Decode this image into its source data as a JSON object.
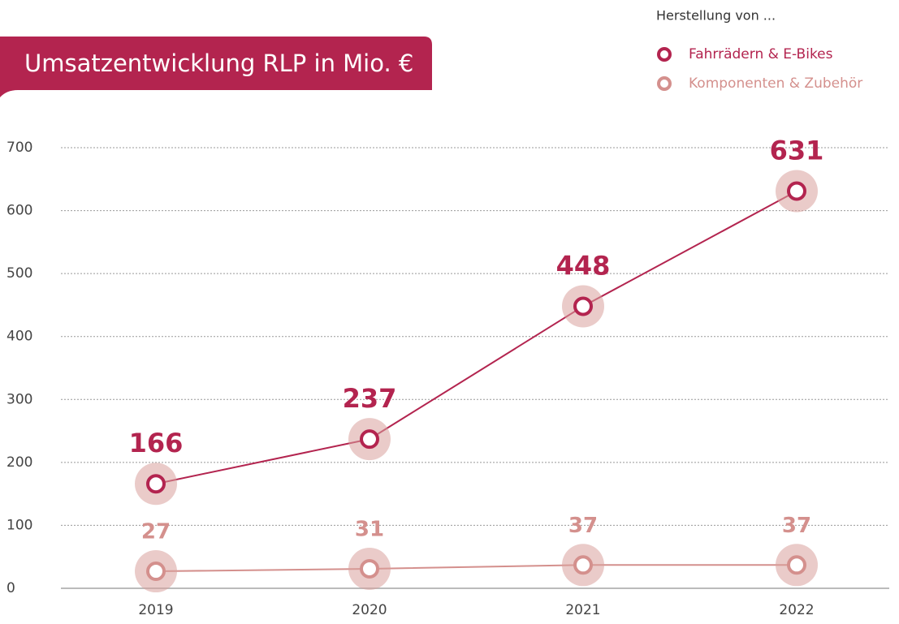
{
  "chart_data": {
    "type": "line",
    "title": "Umsatzentwicklung RLP in Mio. €",
    "legend_title": "Herstellung von ...",
    "categories": [
      "2019",
      "2020",
      "2021",
      "2022"
    ],
    "series": [
      {
        "name": "Fahrrädern & E-Bikes",
        "color": "#b3244f",
        "values": [
          166,
          237,
          448,
          631
        ]
      },
      {
        "name": "Komponenten & Zubehör",
        "color": "#d4908d",
        "values": [
          27,
          31,
          37,
          37
        ]
      }
    ],
    "ylim": [
      0,
      700
    ],
    "yticks": [
      0,
      100,
      200,
      300,
      400,
      500,
      600,
      700
    ],
    "grid": true,
    "legend": "top-right"
  }
}
